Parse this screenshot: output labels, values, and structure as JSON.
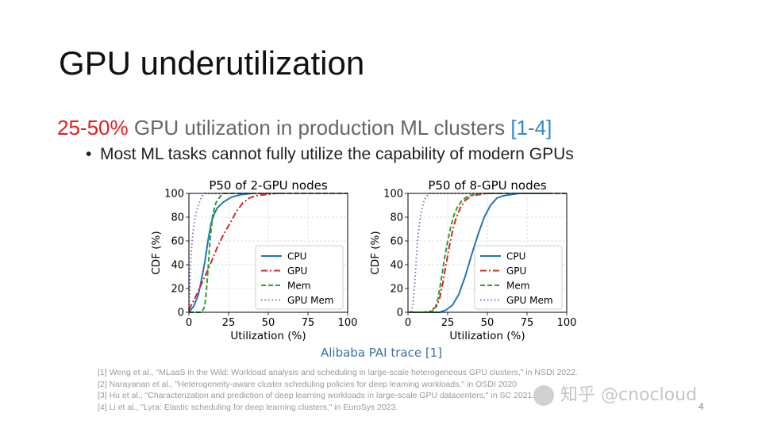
{
  "title": "GPU underutilization",
  "headline": {
    "highlight": "25-50%",
    "text": " GPU utilization in production ML clusters ",
    "cite": "[1-4]"
  },
  "bullet": "Most ML tasks cannot fully utilize the capability of modern GPUs",
  "caption": "Alibaba PAI trace [1]",
  "references": [
    "[1] Weng et al., \"MLaaS in the Wild: Workload analysis and scheduling in large-scale heterogeneous GPU clusters,\"  in NSDI 2022.",
    "[2] Narayanan et al., \"Heterogeneity-aware cluster scheduling policies for deep learning workloads,\" in OSDI 2020",
    "[3] Hu et al., \"Characterization and prediction of deep learning workloads in large-scale GPU datacenters,\" in SC 2021.",
    "[4] Li et al., \"Lyra: Elastic scheduling for deep learning clusters,\" in EuroSys 2023."
  ],
  "page_number": "4",
  "watermark": "知乎 @cnocloud",
  "chart_data": [
    {
      "type": "line",
      "title": "P50 of 2-GPU nodes",
      "xlabel": "Utilization (%)",
      "ylabel": "CDF (%)",
      "xlim": [
        0,
        100
      ],
      "ylim": [
        0,
        100
      ],
      "xticks": [
        "0",
        "25",
        "50",
        "75",
        "100"
      ],
      "yticks": [
        "0",
        "20",
        "40",
        "60",
        "80",
        "100"
      ],
      "grid": true,
      "legend_position": "lower right",
      "series": [
        {
          "name": "CPU",
          "color": "#1f77b4",
          "style": "solid",
          "x": [
            0,
            3,
            6,
            8,
            10,
            12,
            14,
            16,
            18,
            22,
            27,
            33,
            40
          ],
          "y": [
            0,
            5,
            15,
            28,
            42,
            60,
            75,
            83,
            88,
            93,
            97,
            99,
            100
          ]
        },
        {
          "name": "GPU",
          "color": "#d62728",
          "style": "dashdot",
          "x": [
            0,
            3,
            6,
            10,
            14,
            18,
            22,
            26,
            30,
            34,
            38,
            42,
            48,
            55,
            60
          ],
          "y": [
            2,
            10,
            18,
            30,
            42,
            55,
            66,
            75,
            85,
            92,
            96,
            98,
            99,
            100,
            100
          ]
        },
        {
          "name": "Mem",
          "color": "#2ca02c",
          "style": "dashed",
          "x": [
            0,
            5,
            8,
            10,
            11,
            12,
            13,
            14,
            15,
            17,
            20,
            22,
            25,
            100
          ],
          "y": [
            0,
            0,
            0,
            5,
            18,
            35,
            55,
            70,
            82,
            92,
            98,
            100,
            100,
            100
          ]
        },
        {
          "name": "GPU Mem",
          "color": "#9467bd",
          "style": "dotted",
          "x": [
            0,
            0.5,
            1,
            2,
            3,
            4,
            5,
            6,
            7,
            8,
            9,
            10,
            100
          ],
          "y": [
            0,
            20,
            40,
            60,
            72,
            80,
            86,
            90,
            94,
            97,
            99,
            100,
            100
          ]
        }
      ]
    },
    {
      "type": "line",
      "title": "P50 of 8-GPU nodes",
      "xlabel": "Utilization (%)",
      "ylabel": "CDF (%)",
      "xlim": [
        0,
        100
      ],
      "ylim": [
        0,
        100
      ],
      "xticks": [
        "0",
        "25",
        "50",
        "75",
        "100"
      ],
      "yticks": [
        "0",
        "20",
        "40",
        "60",
        "80",
        "100"
      ],
      "grid": true,
      "legend_position": "lower right",
      "series": [
        {
          "name": "CPU",
          "color": "#1f77b4",
          "style": "solid",
          "x": [
            0,
            15,
            20,
            24,
            28,
            32,
            36,
            40,
            44,
            48,
            52,
            56,
            60,
            65,
            70,
            90
          ],
          "y": [
            0,
            0,
            0,
            2,
            6,
            15,
            30,
            48,
            65,
            80,
            90,
            96,
            98,
            99,
            100,
            100
          ]
        },
        {
          "name": "GPU",
          "color": "#d62728",
          "style": "dashdot",
          "x": [
            0,
            10,
            14,
            18,
            20,
            22,
            24,
            26,
            28,
            30,
            33,
            36,
            40,
            45,
            50,
            60
          ],
          "y": [
            0,
            0,
            1,
            5,
            12,
            25,
            40,
            55,
            68,
            78,
            88,
            94,
            98,
            99,
            100,
            100
          ]
        },
        {
          "name": "Mem",
          "color": "#2ca02c",
          "style": "dashed",
          "x": [
            0,
            14,
            17,
            19,
            21,
            23,
            25,
            27,
            29,
            31,
            34,
            38,
            42,
            46,
            100
          ],
          "y": [
            0,
            0,
            3,
            12,
            28,
            45,
            60,
            72,
            82,
            88,
            94,
            98,
            99,
            100,
            100
          ]
        },
        {
          "name": "GPU Mem",
          "color": "#9467bd",
          "style": "dotted",
          "x": [
            0,
            2,
            3,
            4,
            5,
            6,
            7,
            8,
            9,
            10,
            11,
            12,
            13,
            14,
            100
          ],
          "y": [
            0,
            0,
            5,
            20,
            40,
            60,
            72,
            82,
            88,
            93,
            96,
            98,
            99,
            100,
            100
          ]
        }
      ]
    }
  ]
}
